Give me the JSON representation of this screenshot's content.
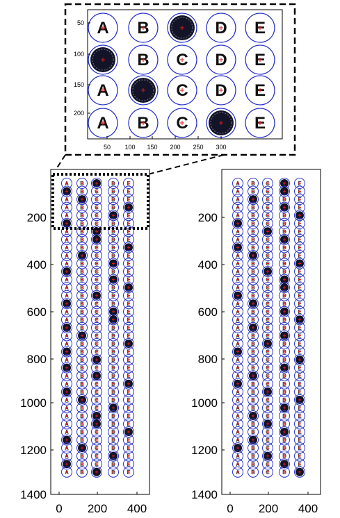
{
  "inset": {
    "y_ticks": [
      "50",
      "100",
      "150",
      "200"
    ],
    "x_ticks": [
      "50",
      "100",
      "150",
      "200",
      "250",
      "300"
    ],
    "rows": [
      {
        "letters": [
          "A",
          "B",
          "",
          "D",
          "E"
        ],
        "filled": [
          false,
          false,
          true,
          false,
          false
        ]
      },
      {
        "letters": [
          "",
          "B",
          "C",
          "D",
          "E"
        ],
        "filled": [
          true,
          false,
          false,
          false,
          false
        ]
      },
      {
        "letters": [
          "A",
          "",
          "C",
          "D",
          "E"
        ],
        "filled": [
          false,
          true,
          false,
          false,
          false
        ]
      },
      {
        "letters": [
          "A",
          "B",
          "C",
          "",
          "E"
        ],
        "filled": [
          false,
          false,
          false,
          true,
          false
        ]
      }
    ]
  },
  "left_panel": {
    "y_ticks": [
      "200",
      "400",
      "600",
      "800",
      "1000",
      "1200",
      "1400"
    ],
    "x_ticks": [
      "0",
      "200",
      "400"
    ],
    "letters": [
      "A",
      "B",
      "C",
      "D",
      "E"
    ],
    "marked": [
      2,
      0,
      1,
      4,
      3,
      0,
      2,
      2,
      4,
      1,
      3,
      0,
      3,
      4,
      2,
      0,
      3,
      3,
      0,
      1,
      4,
      0,
      2,
      0,
      2,
      4,
      0,
      1,
      3,
      2,
      2,
      4,
      0,
      1,
      3,
      0,
      2
    ]
  },
  "right_panel": {
    "y_ticks": [
      "200",
      "400",
      "600",
      "800",
      "1000",
      "1200",
      "1400"
    ],
    "x_ticks": [
      "0",
      "200",
      "400"
    ],
    "letters": [
      "A",
      "B",
      "C",
      "D",
      "E"
    ],
    "marked": [
      3,
      3,
      1,
      3,
      4,
      0,
      2,
      3,
      0,
      1,
      4,
      2,
      3,
      3,
      0,
      1,
      3,
      4,
      1,
      3,
      2,
      0,
      4,
      3,
      1,
      0,
      2,
      4,
      3,
      1,
      2,
      3,
      1,
      0,
      2,
      3,
      4
    ]
  },
  "colors": {
    "bubble_outline": "#2a34c8",
    "center_marker": "#e01818",
    "fill": "#141428",
    "letter": "#111111"
  }
}
